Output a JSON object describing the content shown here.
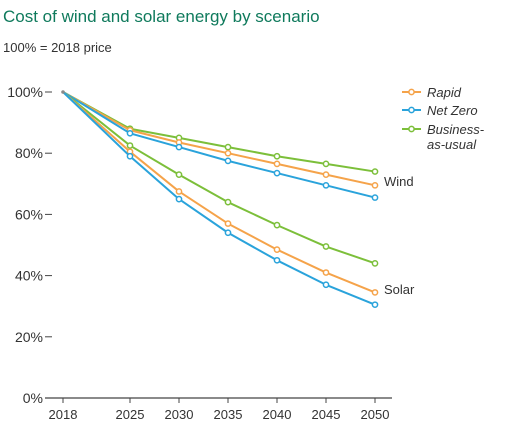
{
  "chart_data": {
    "type": "line",
    "title": "Cost of wind and solar energy by scenario",
    "subtitle": "100% = 2018 price",
    "x": [
      2018,
      2025,
      2030,
      2035,
      2040,
      2045,
      2050
    ],
    "x_tick_labels": [
      "2018",
      "2025",
      "2030",
      "2035",
      "2040",
      "2045",
      "2050"
    ],
    "ylim": [
      0,
      100
    ],
    "y_ticks": [
      0,
      20,
      40,
      60,
      80,
      100
    ],
    "y_tick_labels": [
      "0%",
      "20%",
      "40%",
      "60%",
      "80%",
      "100%"
    ],
    "grid": false,
    "legend_position": "top-right",
    "legend": [
      {
        "label": "Rapid",
        "color": "#f5a34a"
      },
      {
        "label": "Net Zero",
        "color": "#2aa3db"
      },
      {
        "label": "Business-as-usual",
        "lines": [
          "Business-",
          "as-usual"
        ],
        "color": "#7cbf3a"
      }
    ],
    "annotations": [
      "Wind",
      "Solar"
    ],
    "groups": [
      {
        "label": "Wind",
        "series": [
          {
            "name": "Business-as-usual",
            "color": "#7cbf3a",
            "values": [
              100,
              88,
              85,
              82,
              79,
              76.5,
              74
            ]
          },
          {
            "name": "Rapid",
            "color": "#f5a34a",
            "values": [
              100,
              87.5,
              83.5,
              80,
              76.5,
              73,
              69.5
            ]
          },
          {
            "name": "Net Zero",
            "color": "#2aa3db",
            "values": [
              100,
              86.5,
              82,
              77.5,
              73.5,
              69.5,
              65.5
            ]
          }
        ]
      },
      {
        "label": "Solar",
        "series": [
          {
            "name": "Business-as-usual",
            "color": "#7cbf3a",
            "values": [
              100,
              82.5,
              73,
              64,
              56.5,
              49.5,
              44
            ]
          },
          {
            "name": "Rapid",
            "color": "#f5a34a",
            "values": [
              100,
              80.5,
              67.5,
              57,
              48.5,
              41,
              34.5
            ]
          },
          {
            "name": "Net Zero",
            "color": "#2aa3db",
            "values": [
              100,
              79,
              65,
              54,
              45,
              37,
              30.5
            ]
          }
        ]
      }
    ]
  }
}
